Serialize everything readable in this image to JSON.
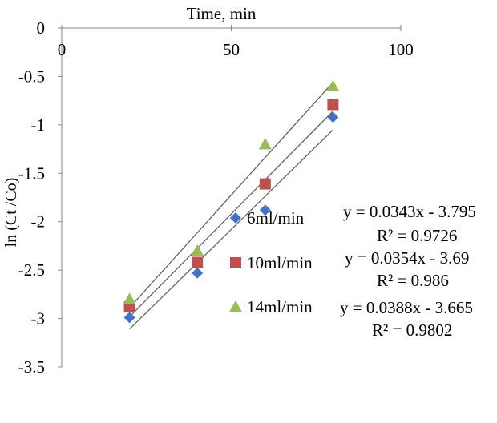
{
  "chart_data": {
    "type": "scatter",
    "xlabel": "Time, min",
    "ylabel": "ln (Ct /Co)",
    "xlim": [
      0,
      100
    ],
    "ylim": [
      -3.5,
      0
    ],
    "x_axis_position": "top",
    "x_ticks": [
      0,
      50,
      100
    ],
    "y_ticks": [
      0,
      -0.5,
      -1,
      -1.5,
      -2,
      -2.5,
      -3,
      -3.5
    ],
    "grid": false,
    "legend_position": "center-right",
    "series": [
      {
        "name": "6ml/min",
        "marker": "diamond",
        "color": "#4472C4",
        "x": [
          20,
          40,
          60,
          80
        ],
        "y": [
          -2.99,
          -2.53,
          -1.88,
          -0.92
        ],
        "trendline": {
          "slope": 0.0343,
          "intercept": -3.795
        },
        "equation": "y = 0.0343x - 3.795",
        "r2": "R² = 0.9726"
      },
      {
        "name": "10ml/min",
        "marker": "square",
        "color": "#C0504D",
        "x": [
          20,
          40,
          60,
          80
        ],
        "y": [
          -2.88,
          -2.42,
          -1.61,
          -0.79
        ],
        "trendline": {
          "slope": 0.0354,
          "intercept": -3.69
        },
        "equation": "y = 0.0354x - 3.69",
        "r2": "R² = 0.986"
      },
      {
        "name": "14ml/min",
        "marker": "triangle",
        "color": "#9BBB59",
        "x": [
          20,
          40,
          60,
          80
        ],
        "y": [
          -2.8,
          -2.3,
          -1.2,
          -0.6
        ],
        "trendline": {
          "slope": 0.0388,
          "intercept": -3.665
        },
        "equation": "y = 0.0388x - 3.665",
        "r2": "R² = 0.9802"
      }
    ],
    "trendline_color": "#595959"
  }
}
